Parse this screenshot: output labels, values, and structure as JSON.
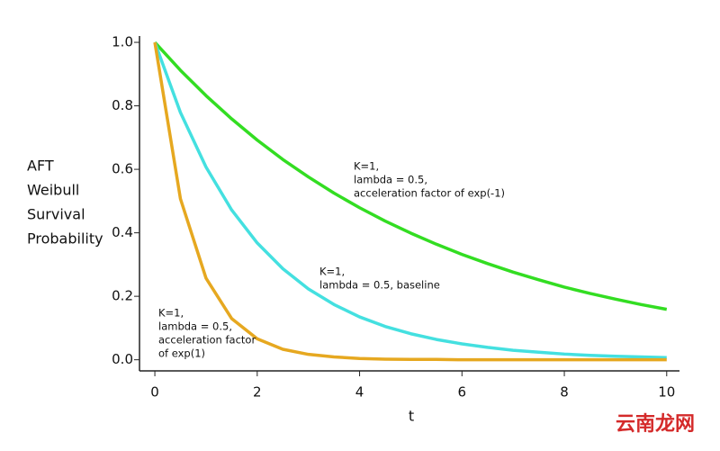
{
  "chart_data": {
    "type": "line",
    "x_label": "t",
    "y_label": [
      "AFT",
      "Weibull",
      "Survival",
      "Probability"
    ],
    "x": [
      0,
      0.5,
      1,
      1.5,
      2,
      2.5,
      3,
      3.5,
      4,
      4.5,
      5,
      5.5,
      6,
      6.5,
      7,
      7.5,
      8,
      8.5,
      9,
      9.5,
      10
    ],
    "series": [
      {
        "color": "#33dd22",
        "values": [
          1,
          0.912,
          0.832,
          0.759,
          0.692,
          0.631,
          0.576,
          0.525,
          0.479,
          0.437,
          0.399,
          0.364,
          0.332,
          0.303,
          0.276,
          0.252,
          0.229,
          0.209,
          0.191,
          0.174,
          0.159
        ]
      },
      {
        "color": "#44e0e0",
        "values": [
          1,
          0.779,
          0.607,
          0.472,
          0.368,
          0.287,
          0.223,
          0.174,
          0.135,
          0.105,
          0.082,
          0.064,
          0.05,
          0.039,
          0.03,
          0.024,
          0.018,
          0.014,
          0.011,
          0.009,
          0.007
        ]
      },
      {
        "color": "#e6a820",
        "values": [
          1,
          0.507,
          0.257,
          0.13,
          0.066,
          0.033,
          0.017,
          0.009,
          0.004,
          0.002,
          0.001,
          0.001,
          0,
          0,
          0,
          0,
          0,
          0,
          0,
          0,
          0
        ]
      }
    ],
    "annotations": [
      [
        "K=1,",
        "lambda = 0.5,",
        "acceleration factor of exp(-1)"
      ],
      [
        "K=1,",
        "lambda = 0.5, baseline"
      ],
      [
        "K=1,",
        "lambda = 0.5,",
        "acceleration factor",
        "of exp(1)"
      ]
    ],
    "xlim": [
      -0.3,
      10.25
    ],
    "ylim": [
      -0.035,
      1.02
    ],
    "xticks": [
      0,
      2,
      4,
      6,
      8,
      10
    ],
    "yticks": [
      {
        "value": 0,
        "label": "0.0"
      },
      {
        "value": 0.2,
        "label": "0.2"
      },
      {
        "value": 0.4,
        "label": "0.4"
      },
      {
        "value": 0.6,
        "label": "0.6"
      },
      {
        "value": 0.8,
        "label": "0.8"
      },
      {
        "value": 1,
        "label": "1.0"
      }
    ],
    "watermark": "云南龙网"
  }
}
